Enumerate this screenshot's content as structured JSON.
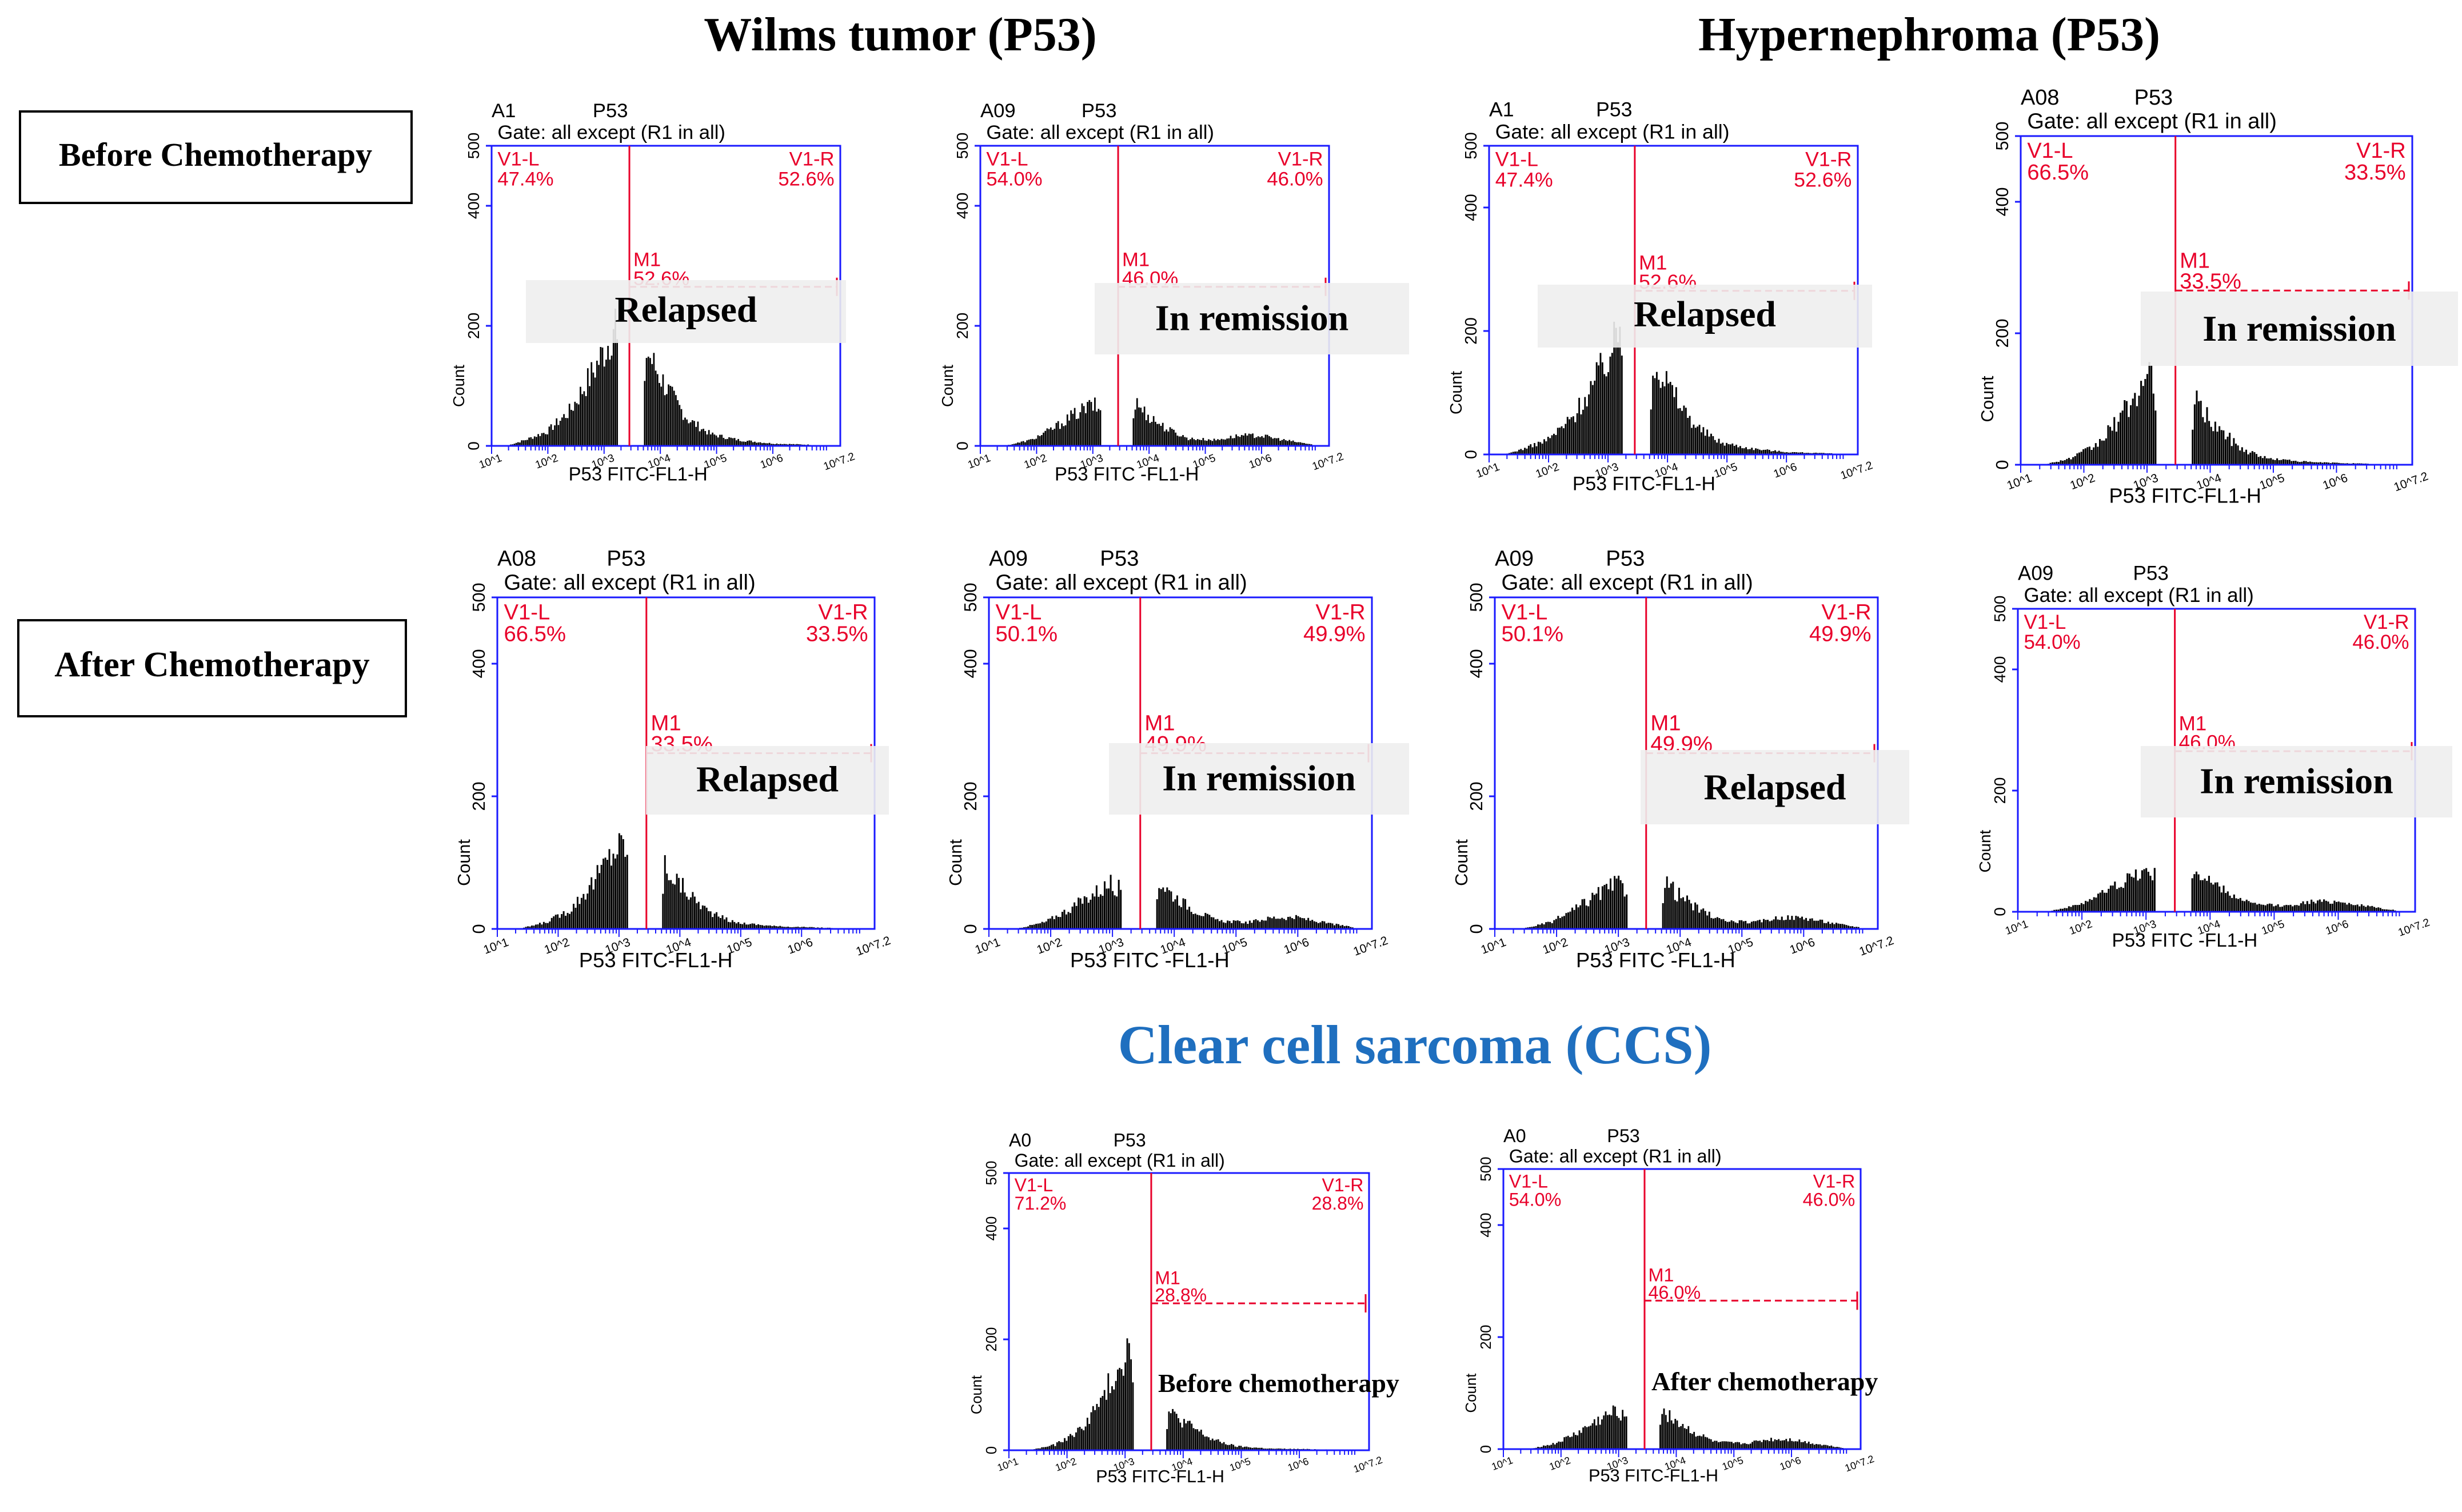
{
  "headings": {
    "wilms": "Wilms tumor (P53)",
    "hyper": "Hypernephroma (P53)",
    "ccs": "Clear cell sarcoma (CCS)"
  },
  "row_labels": {
    "before": "Before Chemotherapy",
    "after": "After Chemotherapy"
  },
  "colors": {
    "axis": "#1a1aff",
    "marker": "#e8002a",
    "bars": "#000000",
    "ccs_title": "#1f6fbf",
    "overlay": "#eeeeee"
  },
  "common": {
    "marker_name": "P53",
    "gate_text": "Gate: all except (R1 in all)",
    "left_region": "V1-L",
    "right_region": "V1-R",
    "m1_label": "M1",
    "ylabel": "Count",
    "yticks": [
      "0",
      "200",
      "400",
      "500"
    ],
    "xticks": [
      "10^1",
      "10^2",
      "10^3",
      "10^4",
      "10^5",
      "10^6",
      "10^7.2"
    ],
    "ymax": 500
  },
  "chart_data": [
    {
      "type": "histogram",
      "panel": "Wilms tumor – Before – Relapsed",
      "sample": "A1",
      "xlabel": "P53 FITC-FL1-H",
      "left_pct": "47.4%",
      "right_pct": "52.6%",
      "m1_pct": "52.6%",
      "annotation": "Relapsed",
      "shape": "high",
      "xlim": [
        1,
        7.2
      ],
      "ylim": [
        0,
        500
      ]
    },
    {
      "type": "histogram",
      "panel": "Wilms tumor – Before – In remission",
      "sample": "A09",
      "xlabel": "P53 FITC -FL1-H",
      "left_pct": "54.0%",
      "right_pct": "46.0%",
      "m1_pct": "46.0%",
      "annotation": "In remission",
      "shape": "low",
      "xlim": [
        1,
        7.2
      ],
      "ylim": [
        0,
        500
      ]
    },
    {
      "type": "histogram",
      "panel": "Hypernephroma – Before – Relapsed",
      "sample": "A1",
      "xlabel": "P53 FITC-FL1-H",
      "left_pct": "47.4%",
      "right_pct": "52.6%",
      "m1_pct": "52.6%",
      "annotation": "Relapsed",
      "shape": "high",
      "xlim": [
        1,
        7.2
      ],
      "ylim": [
        0,
        500
      ]
    },
    {
      "type": "histogram",
      "panel": "Hypernephroma – Before – In remission",
      "sample": "A08",
      "xlabel": "P53 FITC-FL1-H",
      "left_pct": "66.5%",
      "right_pct": "33.5%",
      "m1_pct": "33.5%",
      "annotation": "In remission",
      "shape": "medium",
      "xlim": [
        1,
        7.2
      ],
      "ylim": [
        0,
        500
      ]
    },
    {
      "type": "histogram",
      "panel": "Wilms tumor – After – Relapsed",
      "sample": "A08",
      "xlabel": "P53 FITC-FL1-H",
      "left_pct": "66.5%",
      "right_pct": "33.5%",
      "m1_pct": "33.5%",
      "annotation": "Relapsed",
      "shape": "medium",
      "xlim": [
        1,
        7.2
      ],
      "ylim": [
        0,
        500
      ]
    },
    {
      "type": "histogram",
      "panel": "Wilms tumor – After – In remission",
      "sample": "A09",
      "xlabel": "P53 FITC -FL1-H",
      "left_pct": "50.1%",
      "right_pct": "49.9%",
      "m1_pct": "49.9%",
      "annotation": "In remission",
      "shape": "low",
      "xlim": [
        1,
        7.2
      ],
      "ylim": [
        0,
        500
      ]
    },
    {
      "type": "histogram",
      "panel": "Hypernephroma – After – Relapsed",
      "sample": "A09",
      "xlabel": "P53 FITC -FL1-H",
      "left_pct": "50.1%",
      "right_pct": "49.9%",
      "m1_pct": "49.9%",
      "annotation": "Relapsed",
      "shape": "low",
      "xlim": [
        1,
        7.2
      ],
      "ylim": [
        0,
        500
      ]
    },
    {
      "type": "histogram",
      "panel": "Hypernephroma – After – In remission",
      "sample": "A09",
      "xlabel": "P53 FITC -FL1-H",
      "left_pct": "54.0%",
      "right_pct": "46.0%",
      "m1_pct": "46.0%",
      "annotation": "In remission",
      "shape": "low",
      "xlim": [
        1,
        7.2
      ],
      "ylim": [
        0,
        500
      ]
    },
    {
      "type": "histogram",
      "panel": "CCS – Before chemotherapy",
      "sample": "A0",
      "xlabel": "P53 FITC-FL1-H",
      "left_pct": "71.2%",
      "right_pct": "28.8%",
      "m1_pct": "28.8%",
      "annotation": "Before chemotherapy",
      "shape": "ccs",
      "xlim": [
        1,
        7.2
      ],
      "ylim": [
        0,
        500
      ]
    },
    {
      "type": "histogram",
      "panel": "CCS – After chemotherapy",
      "sample": "A0",
      "xlabel": "P53 FITC-FL1-H",
      "left_pct": "54.0%",
      "right_pct": "46.0%",
      "m1_pct": "46.0%",
      "annotation": "After chemotherapy",
      "shape": "low",
      "xlim": [
        1,
        7.2
      ],
      "ylim": [
        0,
        500
      ]
    }
  ]
}
